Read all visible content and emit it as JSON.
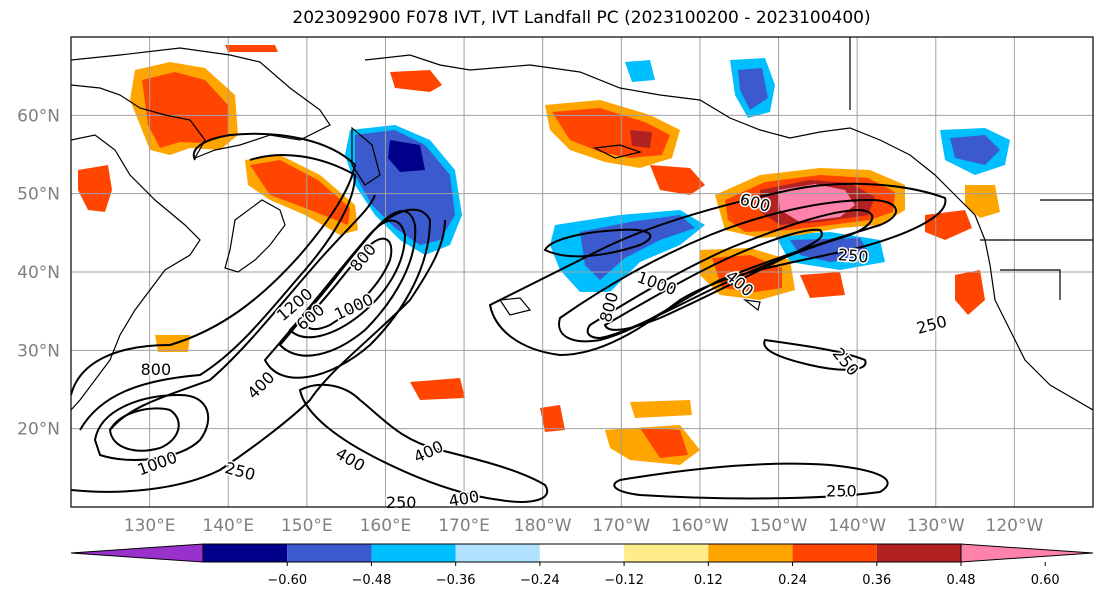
{
  "title": "2023092900 F078 IVT, IVT Landfall PC (2023100200 - 2023100400)",
  "map": {
    "projection": "equirectangular",
    "lon_range": [
      120,
      250
    ],
    "lat_range": [
      10,
      70
    ],
    "lat_ticks": [
      {
        "value": 20,
        "label": "20°N"
      },
      {
        "value": 30,
        "label": "30°N"
      },
      {
        "value": 40,
        "label": "40°N"
      },
      {
        "value": 50,
        "label": "50°N"
      },
      {
        "value": 60,
        "label": "60°N"
      }
    ],
    "lon_ticks": [
      {
        "value": 130,
        "label": "130°E"
      },
      {
        "value": 140,
        "label": "140°E"
      },
      {
        "value": 150,
        "label": "150°E"
      },
      {
        "value": 160,
        "label": "160°E"
      },
      {
        "value": 170,
        "label": "170°E"
      },
      {
        "value": 180,
        "label": "180°W"
      },
      {
        "value": 190,
        "label": "170°W"
      },
      {
        "value": 200,
        "label": "160°W"
      },
      {
        "value": 210,
        "label": "150°W"
      },
      {
        "value": 220,
        "label": "140°W"
      },
      {
        "value": 230,
        "label": "130°W"
      },
      {
        "value": 240,
        "label": "120°W"
      }
    ],
    "contour_labels": [
      {
        "text": "800",
        "lon": 130.8,
        "lat": 27.5,
        "angle": 0
      },
      {
        "text": "1000",
        "lon": 131.0,
        "lat": 15.5,
        "angle": -20
      },
      {
        "text": "250",
        "lon": 141.5,
        "lat": 14.5,
        "angle": 15
      },
      {
        "text": "400",
        "lon": 144.2,
        "lat": 25.5,
        "angle": -45
      },
      {
        "text": "400",
        "lon": 155.5,
        "lat": 16.0,
        "angle": 30
      },
      {
        "text": "400",
        "lon": 165.5,
        "lat": 17.0,
        "angle": -25
      },
      {
        "text": "250",
        "lon": 162.0,
        "lat": 10.5,
        "angle": 0
      },
      {
        "text": "400",
        "lon": 170.0,
        "lat": 11.0,
        "angle": -10
      },
      {
        "text": "800",
        "lon": 157.2,
        "lat": 41.8,
        "angle": -50
      },
      {
        "text": "1000",
        "lon": 156.0,
        "lat": 35.5,
        "angle": -25
      },
      {
        "text": "1200",
        "lon": 148.5,
        "lat": 35.8,
        "angle": -40
      },
      {
        "text": "600",
        "lon": 150.5,
        "lat": 34.2,
        "angle": -40
      },
      {
        "text": "600",
        "lon": 207.0,
        "lat": 48.8,
        "angle": 15
      },
      {
        "text": "250",
        "lon": 219.5,
        "lat": 42.0,
        "angle": 5
      },
      {
        "text": "1000",
        "lon": 194.5,
        "lat": 38.5,
        "angle": 20
      },
      {
        "text": "400",
        "lon": 205.0,
        "lat": 38.5,
        "angle": 40
      },
      {
        "text": "800",
        "lon": 188.5,
        "lat": 35.5,
        "angle": -75
      },
      {
        "text": "250",
        "lon": 229.5,
        "lat": 33.2,
        "angle": -15
      },
      {
        "text": "250",
        "lon": 218.5,
        "lat": 28.5,
        "angle": 50
      },
      {
        "text": "250",
        "lon": 218.0,
        "lat": 12.0,
        "angle": 0
      }
    ]
  },
  "colorbar": {
    "colors": [
      "#9932cc",
      "#00008b",
      "#3a5acd",
      "#00bfff",
      "#b0e2ff",
      "#ffffff",
      "#ffec8b",
      "#ffa500",
      "#ff4500",
      "#b22222",
      "#ff82ab"
    ],
    "labels": [
      "−0.60",
      "−0.48",
      "−0.36",
      "−0.24",
      "−0.12",
      "0.12",
      "0.24",
      "0.36",
      "0.48",
      "0.60"
    ]
  }
}
